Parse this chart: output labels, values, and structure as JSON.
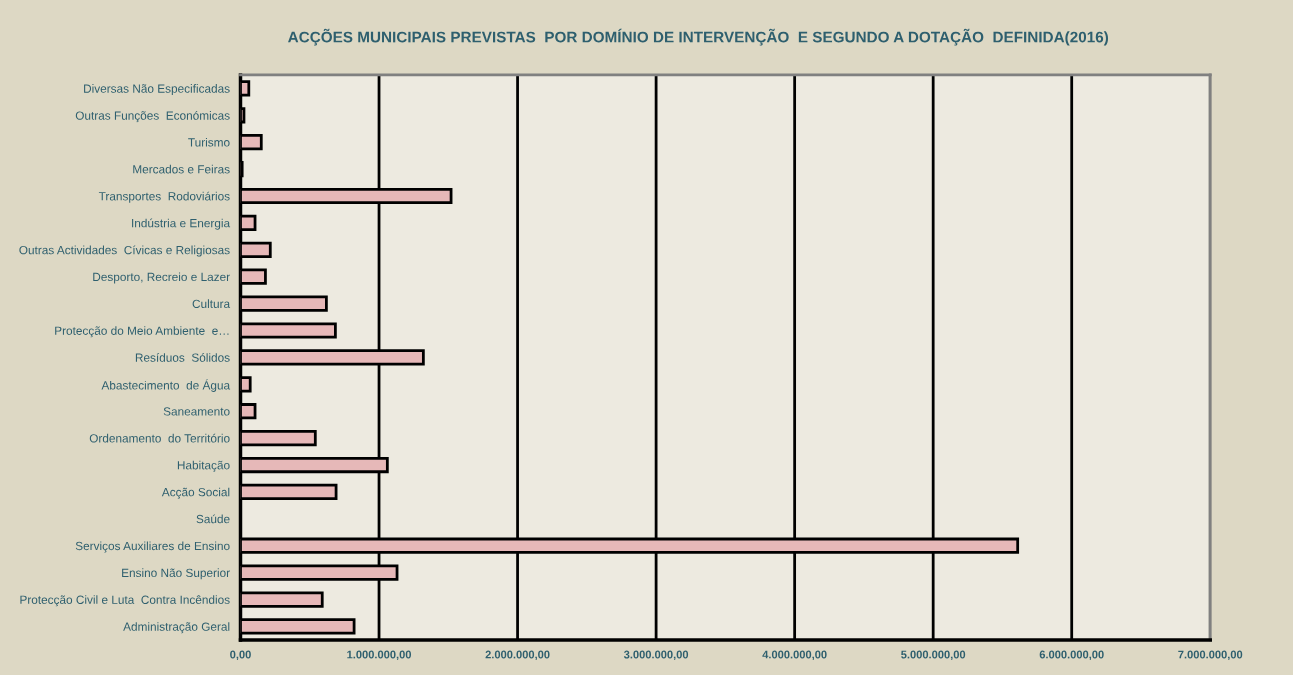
{
  "chart_data": {
    "type": "bar",
    "orientation": "horizontal",
    "title": "ACÇÕES MUNICIPAIS PREVISTAS  POR DOMÍNIO DE INTERVENÇÃO  E SEGUNDO A DOTAÇÃO  DEFINIDA(2016)",
    "categories": [
      "Diversas Não Especificadas",
      "Outras Funções  Económicas",
      "Turismo",
      "Mercados e Feiras",
      "Transportes  Rodoviários",
      "Indústria e Energia",
      "Outras Actividades  Cívicas e Religiosas",
      "Desporto, Recreio e Lazer",
      "Cultura",
      "Protecção do Meio Ambiente  e…",
      "Resíduos  Sólidos",
      "Abastecimento  de Água",
      "Saneamento",
      "Ordenamento  do Território",
      "Habitação",
      "Acção Social",
      "Saúde",
      "Serviços Auxiliares de Ensino",
      "Ensino Não Superior",
      "Protecção Civil e Luta  Contra Incêndios",
      "Administração Geral"
    ],
    "values": [
      60000,
      25000,
      150000,
      12000,
      1520000,
      105000,
      215000,
      180000,
      620000,
      685000,
      1320000,
      70000,
      105000,
      540000,
      1060000,
      690000,
      null,
      5610000,
      1130000,
      590000,
      820000
    ],
    "color": "#e6b8b8",
    "xlim": [
      0,
      7000000
    ],
    "xticks": [
      {
        "value": 0,
        "label": "0,00"
      },
      {
        "value": 1000000,
        "label": "1.000.000,00"
      },
      {
        "value": 2000000,
        "label": "2.000.000,00"
      },
      {
        "value": 3000000,
        "label": "3.000.000,00"
      },
      {
        "value": 4000000,
        "label": "4.000.000,00"
      },
      {
        "value": 5000000,
        "label": "5.000.000,00"
      },
      {
        "value": 6000000,
        "label": "6.000.000,00"
      },
      {
        "value": 7000000,
        "label": "7.000.000,00"
      }
    ],
    "grid": "x"
  }
}
